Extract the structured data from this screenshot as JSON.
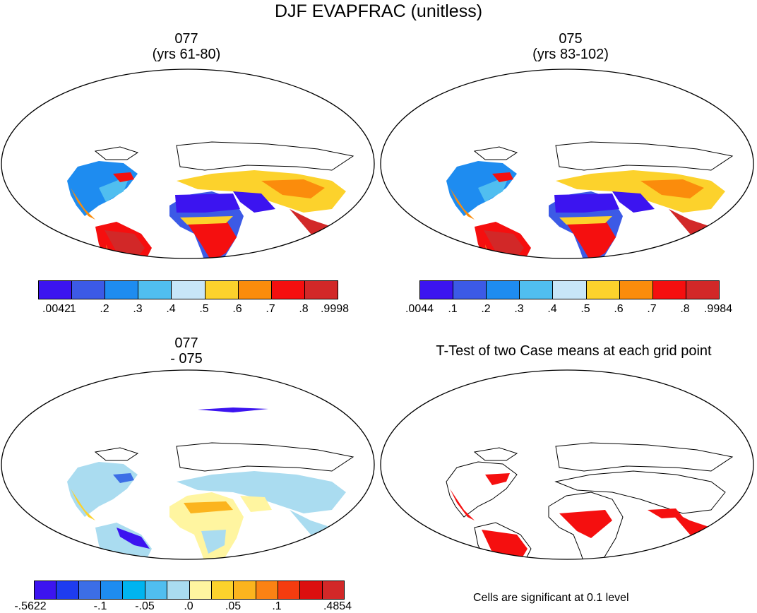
{
  "title": "DJF EVAPFRAC (unitless)",
  "panels": {
    "p1": {
      "line1": "077",
      "line2": "(yrs 61-80)"
    },
    "p2": {
      "line1": "075",
      "line2": "(yrs 83-102)"
    },
    "p3": {
      "line1": "077",
      "line2": "- 075"
    },
    "p4": {
      "line1": "T-Test of two Case means at each grid point"
    }
  },
  "colorbars": {
    "cb1": {
      "colors": [
        "#3c14f0",
        "#3c5ae6",
        "#1e8cf0",
        "#50bef0",
        "#c8e6f8",
        "#fcd22c",
        "#fb8c0c",
        "#f50f0f",
        "#d22828"
      ],
      "labels": [
        ".0042",
        ".1",
        ".2",
        ".3",
        ".4",
        ".5",
        ".6",
        ".7",
        ".8",
        ".9998"
      ]
    },
    "cb2": {
      "colors": [
        "#3c14f0",
        "#3c5ae6",
        "#1e8cf0",
        "#50bef0",
        "#c8e6f8",
        "#fcd22c",
        "#fb8c0c",
        "#f50f0f",
        "#d22828"
      ],
      "labels": [
        ".0044",
        ".1",
        ".2",
        ".3",
        ".4",
        ".5",
        ".6",
        ".7",
        ".8",
        ".9984"
      ]
    },
    "cb3": {
      "colors": [
        "#3c14f0",
        "#1e3cf0",
        "#3c6ee6",
        "#1e8cf0",
        "#00b4f0",
        "#50bef0",
        "#aadcf0",
        "#fff5a0",
        "#fcd22c",
        "#fbb41e",
        "#fb8214",
        "#f53c0f",
        "#dc0f0f",
        "#d22828"
      ],
      "labels": [
        "-.5622",
        "-.1",
        "-.05",
        ".0",
        ".05",
        ".1",
        ".4854"
      ]
    }
  },
  "note": "Cells are significant at 0.1 level"
}
